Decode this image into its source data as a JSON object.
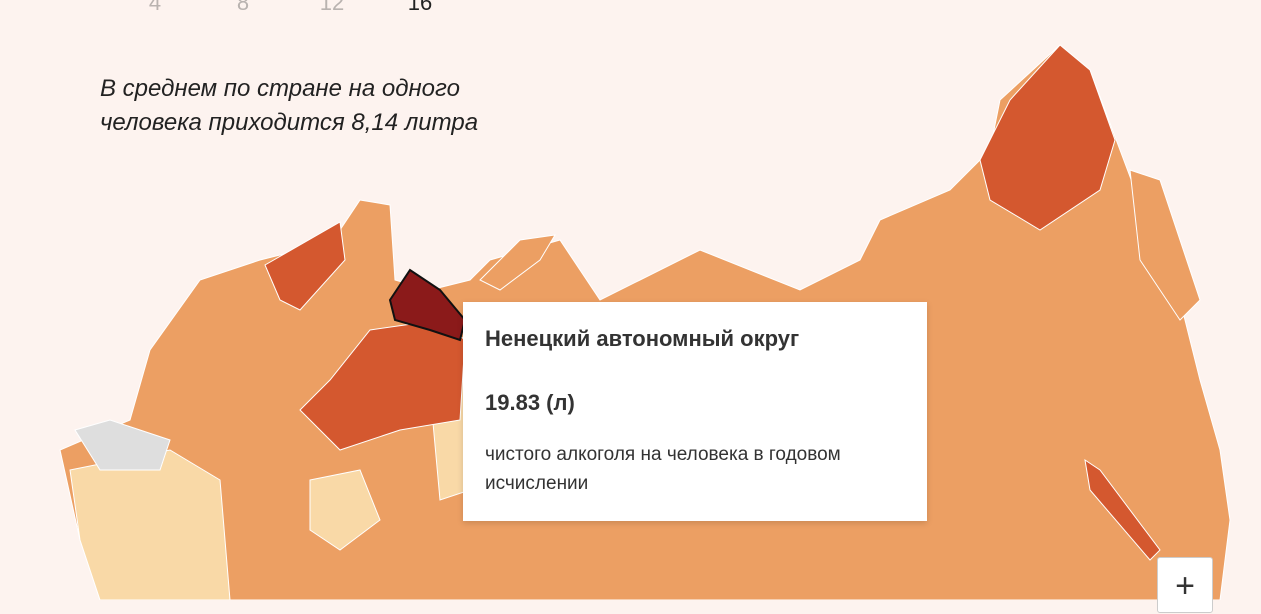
{
  "legend": {
    "ticks": [
      "4",
      "8",
      "12",
      "16"
    ]
  },
  "note": {
    "lines": [
      "В среднем по стране на одного",
      "человека приходится 8,14 литра"
    ]
  },
  "tooltip": {
    "region": "Ненецкий автономный округ",
    "value": "19.83 (л)",
    "description": "чистого алкоголя на человека в годовом исчислении"
  },
  "controls": {
    "zoom_in": "+"
  }
}
